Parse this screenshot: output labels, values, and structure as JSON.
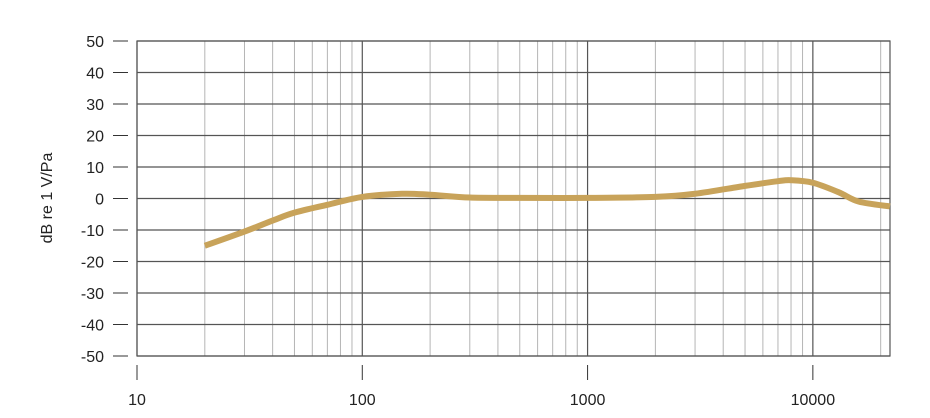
{
  "chart_data": {
    "type": "line",
    "title": "",
    "xlabel": "",
    "ylabel": "dB re 1 V/Pa",
    "xscale": "log",
    "xlim": [
      10,
      22000
    ],
    "ylim": [
      -50,
      50
    ],
    "grid": true,
    "xticks": [
      10,
      100,
      1000,
      10000
    ],
    "xtick_labels": [
      "10",
      "100",
      "1000",
      "10000"
    ],
    "yticks": [
      50,
      40,
      30,
      20,
      10,
      0,
      -10,
      -20,
      -30,
      -40,
      -50
    ],
    "ytick_labels": [
      "50",
      "40",
      "30",
      "20",
      "10",
      "0",
      "-10",
      "-20",
      "-30",
      "-40",
      "-50"
    ],
    "series": [
      {
        "color": "#c8a35a",
        "x": [
          20,
          30,
          40,
          50,
          70,
          100,
          150,
          200,
          300,
          500,
          1000,
          2000,
          3000,
          5000,
          7000,
          8000,
          10000,
          13000,
          16000,
          22000
        ],
        "y": [
          -15,
          -10.5,
          -7,
          -4.5,
          -2,
          0.5,
          1.5,
          1.2,
          0.3,
          0.2,
          0.2,
          0.5,
          1.5,
          4,
          5.5,
          5.8,
          5,
          2,
          -1,
          -2.5
        ]
      }
    ]
  }
}
